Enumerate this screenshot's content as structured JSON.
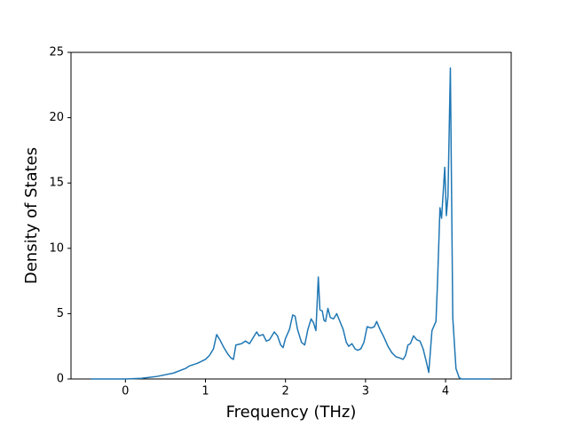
{
  "chart_data": {
    "type": "line",
    "x_label": "Frequency (THz)",
    "y_label": "Density of States",
    "color": "#1f77b4",
    "xlim": [
      -0.68,
      4.82
    ],
    "xticks": [
      0,
      1,
      2,
      3,
      4
    ],
    "ylim": [
      0,
      25
    ],
    "yticks": [
      0,
      5,
      10,
      15,
      20,
      25
    ],
    "x": [
      -0.43,
      0,
      0.2,
      0.4,
      0.6,
      0.75,
      0.8,
      0.9,
      1.0,
      1.05,
      1.1,
      1.14,
      1.18,
      1.23,
      1.28,
      1.32,
      1.35,
      1.38,
      1.45,
      1.5,
      1.55,
      1.6,
      1.64,
      1.67,
      1.72,
      1.76,
      1.8,
      1.86,
      1.9,
      1.94,
      1.97,
      2.0,
      2.05,
      2.09,
      2.12,
      2.15,
      2.2,
      2.24,
      2.28,
      2.32,
      2.35,
      2.38,
      2.41,
      2.43,
      2.46,
      2.48,
      2.5,
      2.53,
      2.56,
      2.6,
      2.64,
      2.68,
      2.72,
      2.76,
      2.79,
      2.83,
      2.87,
      2.9,
      2.94,
      2.98,
      3.02,
      3.07,
      3.11,
      3.14,
      3.18,
      3.23,
      3.28,
      3.33,
      3.38,
      3.43,
      3.47,
      3.5,
      3.53,
      3.56,
      3.6,
      3.64,
      3.68,
      3.72,
      3.76,
      3.79,
      3.83,
      3.88,
      3.9,
      3.93,
      3.95,
      3.99,
      4.01,
      4.03,
      4.06,
      4.09,
      4.13,
      4.17,
      4.2,
      4.35,
      4.57
    ],
    "values": [
      0,
      0,
      0.05,
      0.2,
      0.45,
      0.8,
      1.0,
      1.2,
      1.5,
      1.8,
      2.3,
      3.4,
      3.0,
      2.4,
      1.9,
      1.6,
      1.5,
      2.6,
      2.7,
      2.9,
      2.7,
      3.2,
      3.6,
      3.3,
      3.4,
      2.9,
      3.0,
      3.6,
      3.3,
      2.6,
      2.4,
      3.1,
      3.8,
      4.9,
      4.8,
      3.8,
      2.8,
      2.6,
      3.8,
      4.6,
      4.3,
      3.7,
      7.8,
      5.3,
      5.2,
      4.5,
      4.4,
      5.4,
      4.7,
      4.6,
      5.0,
      4.4,
      3.8,
      2.8,
      2.5,
      2.7,
      2.3,
      2.2,
      2.3,
      2.8,
      4.0,
      3.9,
      4.0,
      4.4,
      3.8,
      3.2,
      2.5,
      2.0,
      1.7,
      1.6,
      1.5,
      1.8,
      2.6,
      2.7,
      3.3,
      3.0,
      2.9,
      2.3,
      1.3,
      0.5,
      3.7,
      4.4,
      7.5,
      13.1,
      12.3,
      16.2,
      12.5,
      14.0,
      23.8,
      4.7,
      0.8,
      0.1,
      0,
      0,
      0
    ]
  }
}
